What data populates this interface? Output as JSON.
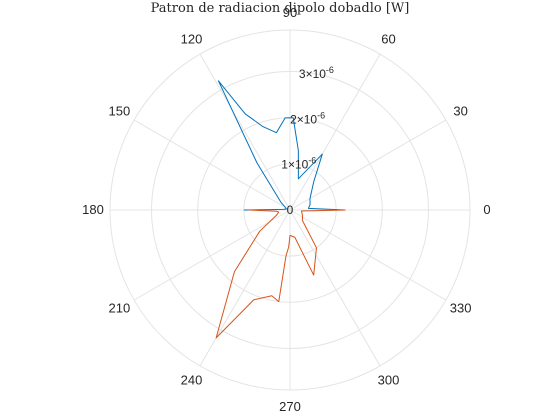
{
  "chart_data": {
    "type": "polar-line",
    "title": "Patron de radiacion dipolo dobadlo [W]",
    "theta_unit": "degrees",
    "theta_ticks": [
      "0",
      "30",
      "60",
      "90",
      "120",
      "150",
      "180",
      "210",
      "240",
      "270",
      "300",
      "330"
    ],
    "r_ticks": [
      {
        "value": 0,
        "base": "0",
        "exp": ""
      },
      {
        "value": 1e-06,
        "base": "1×10",
        "exp": "-6"
      },
      {
        "value": 2e-06,
        "base": "2×10",
        "exp": "-6"
      },
      {
        "value": 3e-06,
        "base": "3×10",
        "exp": "-6"
      }
    ],
    "rlim": [
      0,
      3.9e-06
    ],
    "grid": true,
    "series": [
      {
        "color": "#0072BD",
        "points": [
          {
            "theta": 180,
            "r": 1e-06
          },
          {
            "theta": 175,
            "r": 1.5e-07
          },
          {
            "theta": 165,
            "r": 8e-08
          },
          {
            "theta": 150,
            "r": 1.2e-07
          },
          {
            "theta": 140,
            "r": 2.5e-07
          },
          {
            "theta": 125,
            "r": 1.25e-06
          },
          {
            "theta": 119,
            "r": 3.2e-06
          },
          {
            "theta": 115,
            "r": 2.3e-06
          },
          {
            "theta": 108,
            "r": 1.9e-06
          },
          {
            "theta": 100,
            "r": 1.7e-06
          },
          {
            "theta": 93,
            "r": 2e-06
          },
          {
            "theta": 88,
            "r": 2e-06
          },
          {
            "theta": 82,
            "r": 1.3e-06
          },
          {
            "theta": 75,
            "r": 7e-07
          },
          {
            "theta": 60,
            "r": 1.4e-06
          },
          {
            "theta": 50,
            "r": 8e-07
          },
          {
            "theta": 30,
            "r": 5e-07
          },
          {
            "theta": 15,
            "r": 4.5e-07
          },
          {
            "theta": 5,
            "r": 4e-07
          },
          {
            "theta": 0,
            "r": 1.2e-06
          }
        ]
      },
      {
        "color": "#D95319",
        "points": [
          {
            "theta": 180,
            "r": 9e-07
          },
          {
            "theta": 185,
            "r": 3e-07
          },
          {
            "theta": 190,
            "r": 2.5e-07
          },
          {
            "theta": 200,
            "r": 3e-07
          },
          {
            "theta": 215,
            "r": 8e-07
          },
          {
            "theta": 228,
            "r": 1.8e-06
          },
          {
            "theta": 240,
            "r": 3.2e-06
          },
          {
            "theta": 248,
            "r": 2.1e-06
          },
          {
            "theta": 258,
            "r": 1.9e-06
          },
          {
            "theta": 263,
            "r": 2e-06
          },
          {
            "theta": 265,
            "r": 1e-06
          },
          {
            "theta": 268,
            "r": 8e-07
          },
          {
            "theta": 270,
            "r": 5.5e-07
          },
          {
            "theta": 280,
            "r": 6e-07
          },
          {
            "theta": 290,
            "r": 1.5e-06
          },
          {
            "theta": 305,
            "r": 1e-06
          },
          {
            "theta": 320,
            "r": 3.5e-07
          },
          {
            "theta": 335,
            "r": 3e-07
          },
          {
            "theta": 355,
            "r": 2.5e-07
          },
          {
            "theta": 360,
            "r": 1.2e-06
          }
        ]
      }
    ]
  }
}
